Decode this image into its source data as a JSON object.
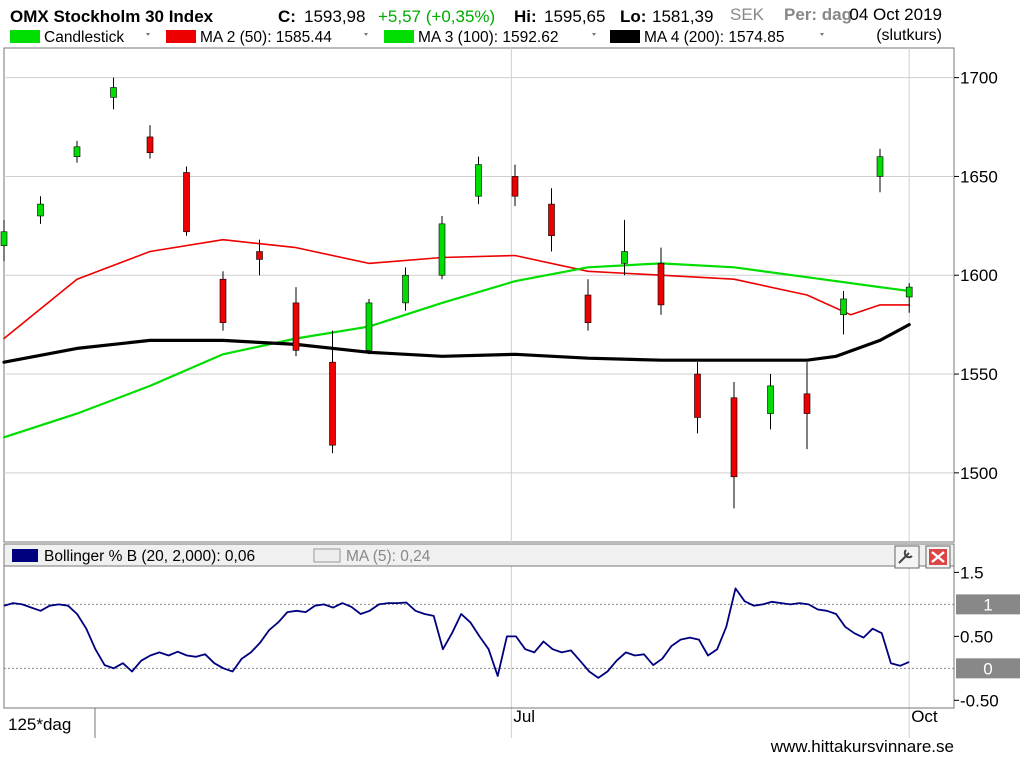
{
  "header": {
    "title": "OMX Stockholm 30 Index",
    "close_label": "C:",
    "close_value": "1593,98",
    "change": "+5,57 (+0,35%)",
    "high_label": "Hi:",
    "high_value": "1595,65",
    "low_label": "Lo:",
    "low_value": "1581,39",
    "date": "04 Oct 2019",
    "currency_overlay": "SEK",
    "period_overlay": "Per: dag",
    "price_basis": "(slutkurs)"
  },
  "legend": [
    {
      "label": "Candlestick",
      "color": "#00dd00"
    },
    {
      "label": "MA 2 (50): 1585.44",
      "color": "#ee0000"
    },
    {
      "label": "MA 3 (100): 1592.62",
      "color": "#00dd00"
    },
    {
      "label": "MA 4 (200): 1574.85",
      "color": "#000000"
    }
  ],
  "indicator_legend": [
    {
      "label": "Bollinger % B (20, 2,000): 0,06",
      "color": "#00007f"
    },
    {
      "label": "MA (5): 0,24",
      "color": "#eeeeee",
      "muted": true
    }
  ],
  "footer": {
    "zoom_label": "125*dag",
    "watermark": "www.hittakursvinnare.se"
  },
  "colors": {
    "up": "#00dd00",
    "down": "#ee0000",
    "ma50": "#ee0000",
    "ma100": "#00dd00",
    "ma200": "#000000",
    "pctb": "#00007f"
  },
  "chart_data": [
    {
      "type": "candlestick",
      "x_labels": [
        "Jul",
        "Oct"
      ],
      "x_label_positions": [
        69.5,
        124
      ],
      "ylim": [
        1465,
        1715
      ],
      "y_ticks": [
        1500,
        1550,
        1600,
        1650,
        1700
      ],
      "grid": true,
      "candles": [
        {
          "i": 0,
          "o": 1615,
          "h": 1628,
          "l": 1607,
          "c": 1622
        },
        {
          "i": 5,
          "o": 1630,
          "h": 1640,
          "l": 1626,
          "c": 1636
        },
        {
          "i": 10,
          "o": 1660,
          "h": 1668,
          "l": 1657,
          "c": 1665
        },
        {
          "i": 15,
          "o": 1690,
          "h": 1700,
          "l": 1684,
          "c": 1695
        },
        {
          "i": 20,
          "o": 1670,
          "h": 1676,
          "l": 1659,
          "c": 1662
        },
        {
          "i": 25,
          "o": 1652,
          "h": 1655,
          "l": 1620,
          "c": 1622
        },
        {
          "i": 30,
          "o": 1598,
          "h": 1602,
          "l": 1572,
          "c": 1576
        },
        {
          "i": 35,
          "o": 1612,
          "h": 1618,
          "l": 1600,
          "c": 1608
        },
        {
          "i": 40,
          "o": 1586,
          "h": 1594,
          "l": 1559,
          "c": 1562
        },
        {
          "i": 45,
          "o": 1556,
          "h": 1572,
          "l": 1510,
          "c": 1514
        },
        {
          "i": 50,
          "o": 1562,
          "h": 1588,
          "l": 1560,
          "c": 1586
        },
        {
          "i": 55,
          "o": 1586,
          "h": 1604,
          "l": 1582,
          "c": 1600
        },
        {
          "i": 60,
          "o": 1600,
          "h": 1630,
          "l": 1598,
          "c": 1626
        },
        {
          "i": 65,
          "o": 1640,
          "h": 1660,
          "l": 1636,
          "c": 1656
        },
        {
          "i": 70,
          "o": 1650,
          "h": 1656,
          "l": 1635,
          "c": 1640
        },
        {
          "i": 75,
          "o": 1636,
          "h": 1644,
          "l": 1612,
          "c": 1620
        },
        {
          "i": 80,
          "o": 1590,
          "h": 1598,
          "l": 1572,
          "c": 1576
        },
        {
          "i": 85,
          "o": 1606,
          "h": 1628,
          "l": 1600,
          "c": 1612
        },
        {
          "i": 90,
          "o": 1606,
          "h": 1614,
          "l": 1580,
          "c": 1585
        },
        {
          "i": 95,
          "o": 1550,
          "h": 1556,
          "l": 1520,
          "c": 1528
        },
        {
          "i": 100,
          "o": 1538,
          "h": 1546,
          "l": 1482,
          "c": 1498
        },
        {
          "i": 105,
          "o": 1530,
          "h": 1550,
          "l": 1522,
          "c": 1544
        },
        {
          "i": 110,
          "o": 1540,
          "h": 1556,
          "l": 1512,
          "c": 1530
        },
        {
          "i": 115,
          "o": 1580,
          "h": 1592,
          "l": 1570,
          "c": 1588
        },
        {
          "i": 120,
          "o": 1650,
          "h": 1664,
          "l": 1642,
          "c": 1660
        },
        {
          "i": 124,
          "o": 1589,
          "h": 1596,
          "l": 1581,
          "c": 1594
        }
      ],
      "series": [
        {
          "name": "MA 2 (50)",
          "color": "#ee0000",
          "width": 1.6,
          "points": [
            [
              0,
              1568
            ],
            [
              10,
              1598
            ],
            [
              20,
              1612
            ],
            [
              30,
              1618
            ],
            [
              40,
              1614
            ],
            [
              50,
              1606
            ],
            [
              60,
              1609
            ],
            [
              70,
              1610
            ],
            [
              80,
              1602
            ],
            [
              90,
              1600
            ],
            [
              100,
              1598
            ],
            [
              110,
              1590
            ],
            [
              116,
              1580
            ],
            [
              120,
              1585
            ],
            [
              124,
              1585
            ]
          ]
        },
        {
          "name": "MA 3 (100)",
          "color": "#00dd00",
          "width": 2.2,
          "points": [
            [
              0,
              1518
            ],
            [
              10,
              1530
            ],
            [
              20,
              1544
            ],
            [
              30,
              1560
            ],
            [
              40,
              1568
            ],
            [
              50,
              1574
            ],
            [
              60,
              1586
            ],
            [
              70,
              1597
            ],
            [
              80,
              1604
            ],
            [
              90,
              1606
            ],
            [
              100,
              1604
            ],
            [
              110,
              1599
            ],
            [
              120,
              1594
            ],
            [
              124,
              1592
            ]
          ]
        },
        {
          "name": "MA 4 (200)",
          "color": "#000000",
          "width": 3.2,
          "points": [
            [
              0,
              1556
            ],
            [
              10,
              1563
            ],
            [
              20,
              1567
            ],
            [
              30,
              1567
            ],
            [
              40,
              1565
            ],
            [
              50,
              1561
            ],
            [
              60,
              1559
            ],
            [
              70,
              1560
            ],
            [
              80,
              1558
            ],
            [
              90,
              1557
            ],
            [
              100,
              1557
            ],
            [
              110,
              1557
            ],
            [
              114,
              1559
            ],
            [
              120,
              1567
            ],
            [
              124,
              1575
            ]
          ]
        }
      ]
    },
    {
      "type": "line",
      "title": "Bollinger % B (20, 2,000)",
      "ylim": [
        -0.62,
        1.6
      ],
      "y_ticks": [
        "1.5",
        "0.50",
        "-0.50"
      ],
      "y_tick_values": [
        1.5,
        0.5,
        -0.5
      ],
      "reference_lines": [
        1,
        0
      ],
      "reference_labels": [
        "1",
        "0"
      ],
      "series": [
        {
          "name": "Bollinger % B (20, 2,000)",
          "color": "#00007f",
          "values": [
            0.98,
            1.02,
            1.0,
            0.95,
            0.9,
            0.98,
            1.0,
            0.98,
            0.85,
            0.62,
            0.3,
            0.05,
            0.0,
            0.08,
            -0.05,
            0.12,
            0.2,
            0.25,
            0.2,
            0.26,
            0.2,
            0.18,
            0.22,
            0.08,
            0.0,
            -0.05,
            0.15,
            0.25,
            0.4,
            0.6,
            0.72,
            0.88,
            0.9,
            0.88,
            0.98,
            1.0,
            0.95,
            1.02,
            0.96,
            0.85,
            0.9,
            1.0,
            1.02,
            1.02,
            1.03,
            0.9,
            0.85,
            0.82,
            0.3,
            0.55,
            0.85,
            0.72,
            0.5,
            0.3,
            -0.12,
            0.5,
            0.5,
            0.3,
            0.25,
            0.42,
            0.3,
            0.25,
            0.28,
            0.12,
            -0.05,
            -0.15,
            -0.05,
            0.12,
            0.25,
            0.2,
            0.22,
            0.05,
            0.15,
            0.35,
            0.45,
            0.48,
            0.45,
            0.2,
            0.3,
            0.65,
            1.25,
            1.05,
            0.98,
            1.0,
            1.04,
            1.02,
            1.0,
            1.02,
            1.0,
            0.92,
            0.9,
            0.85,
            0.65,
            0.55,
            0.48,
            0.62,
            0.55,
            0.08,
            0.04,
            0.1
          ]
        }
      ]
    }
  ]
}
